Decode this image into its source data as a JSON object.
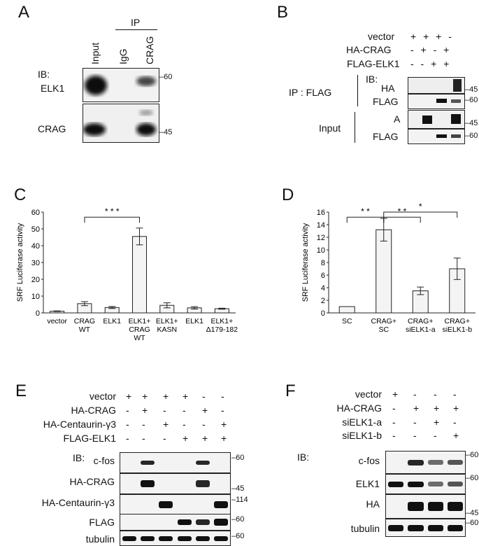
{
  "panelA": {
    "letter": "A",
    "ip_header": "IP",
    "lanes": [
      "Input",
      "IgG",
      "CRAG"
    ],
    "ib": "IB:",
    "rows": [
      "ELK1",
      "CRAG"
    ],
    "markers": [
      "–60",
      "–45"
    ]
  },
  "panelB": {
    "letter": "B",
    "conditions": [
      {
        "label": "vector",
        "marks": "+ + + -"
      },
      {
        "label": "HA-CRAG",
        "marks": "- + - +"
      },
      {
        "label": "FLAG-ELK1",
        "marks": "- - + +"
      }
    ],
    "ib": "IB:",
    "ip_flag": "IP : FLAG",
    "input": "Input",
    "rows": [
      "HA",
      "FLAG",
      "A",
      "FLAG"
    ],
    "markers": [
      "–45",
      "–60",
      "–45",
      "–60"
    ]
  },
  "panelC": {
    "letter": "C",
    "sig": "* * *"
  },
  "panelD": {
    "letter": "D",
    "sig": [
      "* *",
      "* *",
      "*"
    ]
  },
  "panelE": {
    "letter": "E",
    "conditions": [
      {
        "label": "vector",
        "marks": [
          "+",
          "+",
          "+",
          "+",
          "-",
          "-"
        ]
      },
      {
        "label": "HA-CRAG",
        "marks": [
          "-",
          "+",
          "-",
          "-",
          "+",
          "-"
        ]
      },
      {
        "label": "HA-Centaurin-γ3",
        "marks": [
          "-",
          "-",
          "+",
          "-",
          "-",
          "+"
        ]
      },
      {
        "label": "FLAG-ELK1",
        "marks": [
          "-",
          "-",
          "-",
          "+",
          "+",
          "+"
        ]
      }
    ],
    "ib": "IB:",
    "rows": [
      "c-fos",
      "HA-CRAG",
      "HA-Centaurin-γ3",
      "FLAG",
      "tubulin"
    ],
    "markers": [
      "–60",
      "–45",
      "–114",
      "–60",
      "–60"
    ]
  },
  "panelF": {
    "letter": "F",
    "conditions": [
      {
        "label": "vector",
        "marks": [
          "+",
          "-",
          "-",
          "-"
        ]
      },
      {
        "label": "HA-CRAG",
        "marks": [
          "-",
          "+",
          "+",
          "+"
        ]
      },
      {
        "label": "siELK1-a",
        "marks": [
          "-",
          "-",
          "+",
          "-"
        ]
      },
      {
        "label": "siELK1-b",
        "marks": [
          "-",
          "-",
          "-",
          "+"
        ]
      }
    ],
    "ib": "IB:",
    "rows": [
      "c-fos",
      "ELK1",
      "HA",
      "tubulin"
    ],
    "markers": [
      "–60",
      "–60",
      "–45",
      "–60"
    ]
  },
  "chart_data": [
    {
      "type": "bar",
      "panel": "C",
      "ylabel": "SRF Luciferase activity",
      "ylim": [
        0,
        60
      ],
      "yticks": [
        0,
        10,
        20,
        30,
        40,
        50,
        60
      ],
      "categories": [
        "vector",
        "CRAG\nWT",
        "ELK1",
        "ELK1+\nCRAG\nWT",
        "ELK1+\nKASN",
        "ELK1",
        "ELK1+\nΔ179-182"
      ],
      "values": [
        1,
        5.5,
        3.2,
        45.5,
        4.5,
        3,
        2.5
      ],
      "errors": [
        0.2,
        1.2,
        0.6,
        5,
        1.5,
        0.7,
        0.3
      ],
      "annotations": [
        {
          "text": "* * *",
          "between": [
            1,
            3
          ]
        }
      ]
    },
    {
      "type": "bar",
      "panel": "D",
      "ylabel": "SRF Luciferase activity",
      "ylim": [
        0,
        16
      ],
      "yticks": [
        0,
        2,
        4,
        6,
        8,
        10,
        12,
        14,
        16
      ],
      "categories": [
        "SC",
        "CRAG+\nSC",
        "CRAG+\nsiELK1-a",
        "CRAG+\nsiELK1-b"
      ],
      "values": [
        1,
        13.2,
        3.5,
        7
      ],
      "errors": [
        0,
        1.8,
        0.6,
        1.7
      ],
      "annotations": [
        {
          "text": "* *",
          "between": [
            0,
            1
          ]
        },
        {
          "text": "* *",
          "between": [
            1,
            2
          ]
        },
        {
          "text": "*",
          "between": [
            1,
            3
          ]
        }
      ]
    }
  ]
}
